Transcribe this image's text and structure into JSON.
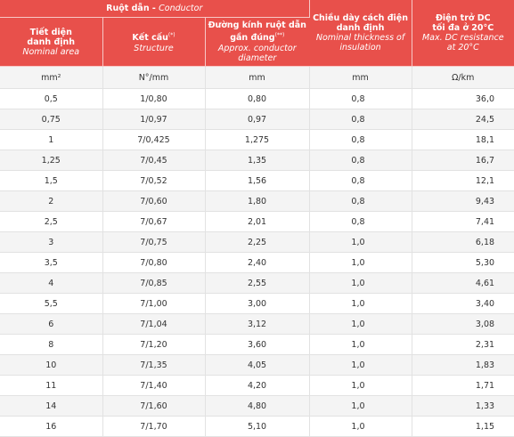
{
  "header": {
    "group": {
      "vi": "Ruột dẫn",
      "en": "Conductor"
    },
    "cols": [
      {
        "vi_line1": "Tiết diện",
        "vi_line2": "danh định",
        "en": "Nominal area"
      },
      {
        "vi": "Kết cấu",
        "sup": "(*)",
        "en": "Structure"
      },
      {
        "vi_line1": "Đường kính ruột dẫn",
        "vi_line2": "gần đúng",
        "sup": "(**)",
        "en_line1": "Approx. conductor",
        "en_line2": "diameter"
      },
      {
        "vi_line1": "Chiều dày cách điện",
        "vi_line2": "danh định",
        "en_line1": "Nominal thickness of",
        "en_line2": "insulation"
      },
      {
        "vi_line1": "Điện trở DC",
        "vi_line2": "tối đa ở 20°C",
        "en_line1": "Max. DC resistance",
        "en_line2": "at 20°C"
      }
    ]
  },
  "units": [
    "mm²",
    "N°/mm",
    "mm",
    "mm",
    "Ω/km"
  ],
  "rows": [
    [
      "0,5",
      "1/0,80",
      "0,80",
      "0,8",
      "36,0"
    ],
    [
      "0,75",
      "1/0,97",
      "0,97",
      "0,8",
      "24,5"
    ],
    [
      "1",
      "7/0,425",
      "1,275",
      "0,8",
      "18,1"
    ],
    [
      "1,25",
      "7/0,45",
      "1,35",
      "0,8",
      "16,7"
    ],
    [
      "1,5",
      "7/0,52",
      "1,56",
      "0,8",
      "12,1"
    ],
    [
      "2",
      "7/0,60",
      "1,80",
      "0,8",
      "9,43"
    ],
    [
      "2,5",
      "7/0,67",
      "2,01",
      "0,8",
      "7,41"
    ],
    [
      "3",
      "7/0,75",
      "2,25",
      "1,0",
      "6,18"
    ],
    [
      "3,5",
      "7/0,80",
      "2,40",
      "1,0",
      "5,30"
    ],
    [
      "4",
      "7/0,85",
      "2,55",
      "1,0",
      "4,61"
    ],
    [
      "5,5",
      "7/1,00",
      "3,00",
      "1,0",
      "3,40"
    ],
    [
      "6",
      "7/1,04",
      "3,12",
      "1,0",
      "3,08"
    ],
    [
      "8",
      "7/1,20",
      "3,60",
      "1,0",
      "2,31"
    ],
    [
      "10",
      "7/1,35",
      "4,05",
      "1,0",
      "1,83"
    ],
    [
      "11",
      "7/1,40",
      "4,20",
      "1,0",
      "1,71"
    ],
    [
      "14",
      "7/1,60",
      "4,80",
      "1,0",
      "1,33"
    ],
    [
      "16",
      "7/1,70",
      "5,10",
      "1,0",
      "1,15"
    ]
  ]
}
